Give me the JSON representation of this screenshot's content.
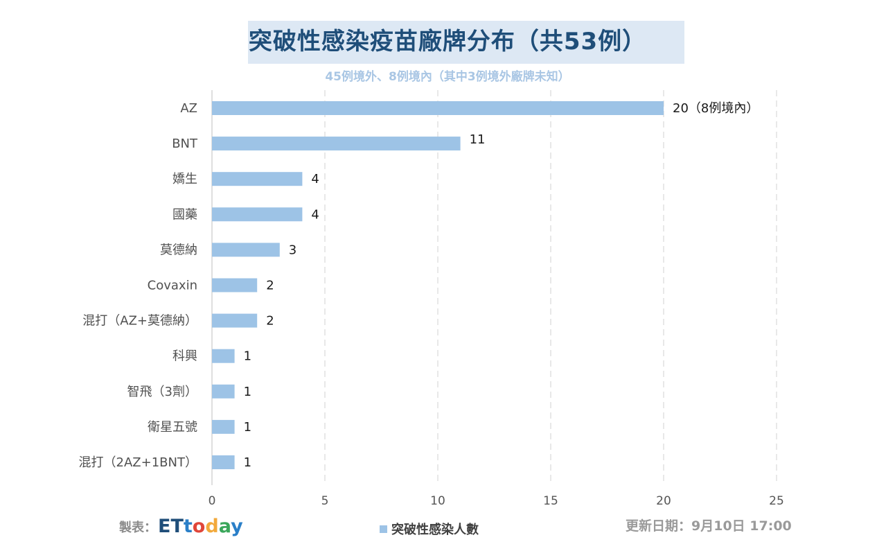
{
  "title": "突破性感染疫苗廠牌分布（共53例）",
  "subtitle": "45例境外、8例境內（其中3例境外廠牌未知）",
  "footer": {
    "credit_label": "製表：",
    "logo_text": "ETtoday",
    "update": "更新日期：9月10日 17:00"
  },
  "colors": {
    "bar": "#9dc3e6",
    "title": "#1f4e79",
    "title_bg": "#dde8f4",
    "subtitle": "#a9c6e4"
  },
  "chart_data": {
    "type": "bar",
    "orientation": "horizontal",
    "categories": [
      "AZ",
      "BNT",
      "嬌生",
      "國藥",
      "莫德納",
      "Covaxin",
      "混打（AZ+莫德納）",
      "科興",
      "智飛（3劑）",
      "衛星五號",
      "混打（2AZ+1BNT）"
    ],
    "series": [
      {
        "name": "突破性感染人數",
        "values": [
          20,
          11,
          4,
          4,
          3,
          2,
          2,
          1,
          1,
          1,
          1
        ],
        "data_labels": [
          "20（8例境內）",
          "11",
          "4",
          "4",
          "3",
          "2",
          "2",
          "1",
          "1",
          "1",
          "1"
        ]
      }
    ],
    "xlim": [
      0,
      25
    ],
    "xticks": [
      "0",
      "5",
      "10",
      "15",
      "20",
      "25"
    ],
    "grid": "vertical dashed",
    "legend": "bottom"
  }
}
